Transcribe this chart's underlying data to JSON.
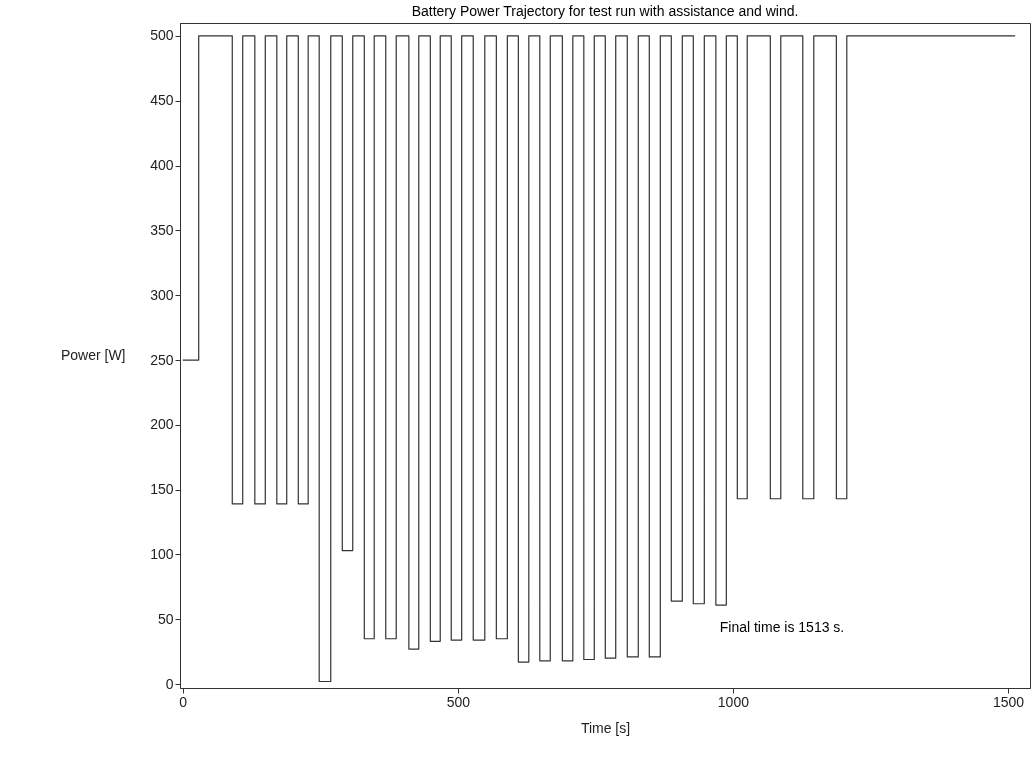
{
  "chart_data": {
    "type": "step",
    "title": "Battery Power Trajectory for test run with assistance and wind.",
    "xlabel": "Time [s]",
    "ylabel": "Power [W]",
    "x": [
      0,
      29,
      90,
      109,
      131,
      150,
      171,
      189,
      210,
      228,
      248,
      269,
      290,
      309,
      330,
      348,
      369,
      388,
      411,
      429,
      450,
      468,
      488,
      507,
      528,
      549,
      570,
      590,
      610,
      629,
      649,
      668,
      690,
      709,
      729,
      748,
      768,
      787,
      808,
      828,
      848,
      868,
      888,
      908,
      928,
      948,
      969,
      988,
      1008,
      1026,
      1068,
      1087,
      1127,
      1147,
      1188,
      1207,
      1513
    ],
    "series": [
      {
        "color": "#333333",
        "values": [
          250,
          500,
          139,
          500,
          139,
          500,
          139,
          500,
          139,
          500,
          2,
          500,
          103,
          500,
          35,
          500,
          35,
          500,
          27,
          500,
          33,
          500,
          34,
          500,
          34,
          500,
          35,
          500,
          17,
          500,
          18,
          500,
          18,
          500,
          19,
          500,
          20,
          500,
          21,
          500,
          21,
          500,
          64,
          500,
          62,
          500,
          61,
          500,
          143,
          500,
          143,
          500,
          143,
          500,
          143,
          500,
          500
        ]
      }
    ],
    "xlim": [
      -5,
      1540
    ],
    "ylim": [
      -3,
      510
    ],
    "xticks": [
      0,
      500,
      1000,
      1500
    ],
    "yticks": [
      0,
      50,
      100,
      150,
      200,
      250,
      300,
      350,
      400,
      450,
      500
    ],
    "grid": false,
    "annotations": [
      "Final time is 1513 s."
    ]
  }
}
